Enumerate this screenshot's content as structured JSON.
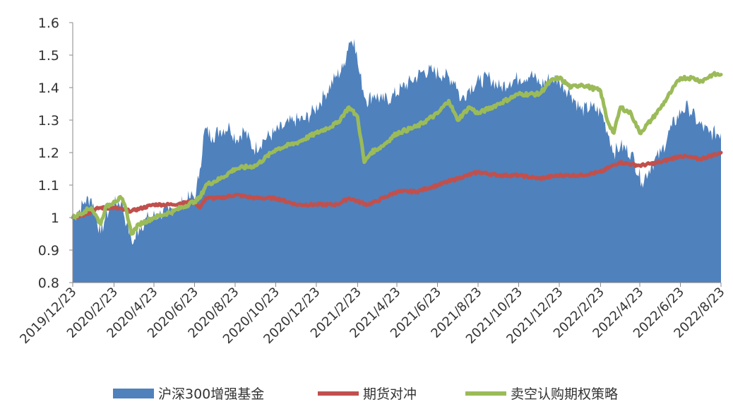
{
  "chart_data": {
    "type": "area",
    "title": "",
    "xlabel": "",
    "ylabel": "",
    "ylim": [
      0.8,
      1.6
    ],
    "yticks": [
      "1.6",
      "1.5",
      "1.4",
      "1.3",
      "1.2",
      "1.1",
      "1",
      "0.9",
      "0.8"
    ],
    "xticks": [
      "2019/12/23",
      "2020/2/23",
      "2020/4/23",
      "2020/6/23",
      "2020/8/23",
      "2020/10/23",
      "2020/12/23",
      "2021/2/23",
      "2021/4/23",
      "2021/6/23",
      "2021/8/23",
      "2021/10/23",
      "2021/12/23",
      "2022/2/23",
      "2022/4/23",
      "2022/6/23",
      "2022/8/23"
    ],
    "grid": false,
    "legend_position": "bottom",
    "series": [
      {
        "name": "沪深300增强基金",
        "type": "area",
        "color": "#4f81bd",
        "points": [
          [
            "2019/12/23",
            1.0
          ],
          [
            "2020/1/1",
            1.02
          ],
          [
            "2020/1/10",
            1.05
          ],
          [
            "2020/1/20",
            1.06
          ],
          [
            "2020/2/3",
            0.95
          ],
          [
            "2020/2/10",
            1.0
          ],
          [
            "2020/2/20",
            1.04
          ],
          [
            "2020/3/5",
            1.05
          ],
          [
            "2020/3/13",
            0.98
          ],
          [
            "2020/3/23",
            0.92
          ],
          [
            "2020/4/1",
            0.97
          ],
          [
            "2020/4/15",
            1.0
          ],
          [
            "2020/5/1",
            1.01
          ],
          [
            "2020/5/15",
            1.02
          ],
          [
            "2020/6/1",
            1.04
          ],
          [
            "2020/6/15",
            1.06
          ],
          [
            "2020/6/25",
            1.07
          ],
          [
            "2020/7/1",
            1.15
          ],
          [
            "2020/7/8",
            1.27
          ],
          [
            "2020/7/20",
            1.25
          ],
          [
            "2020/8/1",
            1.27
          ],
          [
            "2020/8/15",
            1.28
          ],
          [
            "2020/8/25",
            1.24
          ],
          [
            "2020/9/5",
            1.27
          ],
          [
            "2020/9/20",
            1.21
          ],
          [
            "2020/10/5",
            1.24
          ],
          [
            "2020/10/20",
            1.26
          ],
          [
            "2020/11/5",
            1.28
          ],
          [
            "2020/11/20",
            1.3
          ],
          [
            "2020/12/5",
            1.3
          ],
          [
            "2020/12/20",
            1.33
          ],
          [
            "2021/1/5",
            1.38
          ],
          [
            "2021/1/20",
            1.43
          ],
          [
            "2021/2/1",
            1.46
          ],
          [
            "2021/2/10",
            1.54
          ],
          [
            "2021/2/18",
            1.55
          ],
          [
            "2021/2/25",
            1.45
          ],
          [
            "2021/3/8",
            1.36
          ],
          [
            "2021/3/20",
            1.38
          ],
          [
            "2021/4/1",
            1.36
          ],
          [
            "2021/4/15",
            1.37
          ],
          [
            "2021/5/1",
            1.4
          ],
          [
            "2021/5/15",
            1.42
          ],
          [
            "2021/6/1",
            1.45
          ],
          [
            "2021/6/15",
            1.45
          ],
          [
            "2021/7/1",
            1.44
          ],
          [
            "2021/7/20",
            1.42
          ],
          [
            "2021/7/28",
            1.36
          ],
          [
            "2021/8/10",
            1.4
          ],
          [
            "2021/8/25",
            1.42
          ],
          [
            "2021/9/10",
            1.43
          ],
          [
            "2021/9/25",
            1.4
          ],
          [
            "2021/10/10",
            1.42
          ],
          [
            "2021/10/25",
            1.43
          ],
          [
            "2021/11/10",
            1.44
          ],
          [
            "2021/11/25",
            1.41
          ],
          [
            "2021/12/10",
            1.43
          ],
          [
            "2021/12/23",
            1.42
          ],
          [
            "2022/1/10",
            1.38
          ],
          [
            "2022/1/25",
            1.33
          ],
          [
            "2022/2/10",
            1.34
          ],
          [
            "2022/2/25",
            1.32
          ],
          [
            "2022/3/8",
            1.25
          ],
          [
            "2022/3/15",
            1.2
          ],
          [
            "2022/3/25",
            1.22
          ],
          [
            "2022/4/10",
            1.2
          ],
          [
            "2022/4/26",
            1.11
          ],
          [
            "2022/5/10",
            1.16
          ],
          [
            "2022/5/25",
            1.2
          ],
          [
            "2022/6/10",
            1.28
          ],
          [
            "2022/6/25",
            1.33
          ],
          [
            "2022/7/5",
            1.34
          ],
          [
            "2022/7/20",
            1.29
          ],
          [
            "2022/8/5",
            1.26
          ],
          [
            "2022/8/23",
            1.26
          ]
        ]
      },
      {
        "name": "期货对冲",
        "type": "line",
        "color": "#c0504d",
        "points": [
          [
            "2019/12/23",
            1.0
          ],
          [
            "2020/1/10",
            1.01
          ],
          [
            "2020/2/1",
            1.03
          ],
          [
            "2020/2/23",
            1.03
          ],
          [
            "2020/3/20",
            1.02
          ],
          [
            "2020/4/23",
            1.04
          ],
          [
            "2020/5/20",
            1.04
          ],
          [
            "2020/6/23",
            1.05
          ],
          [
            "2020/7/1",
            1.03
          ],
          [
            "2020/7/10",
            1.06
          ],
          [
            "2020/8/1",
            1.06
          ],
          [
            "2020/8/23",
            1.07
          ],
          [
            "2020/9/23",
            1.06
          ],
          [
            "2020/10/23",
            1.06
          ],
          [
            "2020/11/23",
            1.04
          ],
          [
            "2020/12/23",
            1.04
          ],
          [
            "2021/1/23",
            1.04
          ],
          [
            "2021/2/10",
            1.06
          ],
          [
            "2021/2/23",
            1.05
          ],
          [
            "2021/3/10",
            1.04
          ],
          [
            "2021/3/23",
            1.05
          ],
          [
            "2021/4/23",
            1.08
          ],
          [
            "2021/5/23",
            1.08
          ],
          [
            "2021/6/23",
            1.1
          ],
          [
            "2021/7/23",
            1.12
          ],
          [
            "2021/8/23",
            1.14
          ],
          [
            "2021/9/23",
            1.13
          ],
          [
            "2021/10/23",
            1.13
          ],
          [
            "2021/11/23",
            1.12
          ],
          [
            "2021/12/23",
            1.13
          ],
          [
            "2022/1/23",
            1.13
          ],
          [
            "2022/2/23",
            1.14
          ],
          [
            "2022/3/23",
            1.17
          ],
          [
            "2022/4/23",
            1.16
          ],
          [
            "2022/5/23",
            1.17
          ],
          [
            "2022/6/23",
            1.19
          ],
          [
            "2022/7/23",
            1.18
          ],
          [
            "2022/8/23",
            1.2
          ]
        ]
      },
      {
        "name": "卖空认购期权策略",
        "type": "line",
        "color": "#9bbb59",
        "points": [
          [
            "2019/12/23",
            1.0
          ],
          [
            "2020/1/10",
            1.02
          ],
          [
            "2020/1/20",
            1.03
          ],
          [
            "2020/2/3",
            0.98
          ],
          [
            "2020/2/10",
            1.03
          ],
          [
            "2020/2/23",
            1.05
          ],
          [
            "2020/3/5",
            1.06
          ],
          [
            "2020/3/13",
            1.02
          ],
          [
            "2020/3/20",
            0.95
          ],
          [
            "2020/4/1",
            0.98
          ],
          [
            "2020/4/23",
            1.0
          ],
          [
            "2020/5/23",
            1.02
          ],
          [
            "2020/6/23",
            1.05
          ],
          [
            "2020/7/1",
            1.06
          ],
          [
            "2020/7/10",
            1.1
          ],
          [
            "2020/8/1",
            1.12
          ],
          [
            "2020/8/23",
            1.15
          ],
          [
            "2020/9/23",
            1.16
          ],
          [
            "2020/10/23",
            1.21
          ],
          [
            "2020/11/23",
            1.23
          ],
          [
            "2020/12/23",
            1.26
          ],
          [
            "2021/1/23",
            1.29
          ],
          [
            "2021/2/10",
            1.34
          ],
          [
            "2021/2/23",
            1.31
          ],
          [
            "2021/3/5",
            1.17
          ],
          [
            "2021/3/15",
            1.2
          ],
          [
            "2021/4/1",
            1.22
          ],
          [
            "2021/4/23",
            1.26
          ],
          [
            "2021/5/23",
            1.28
          ],
          [
            "2021/6/23",
            1.32
          ],
          [
            "2021/7/10",
            1.36
          ],
          [
            "2021/7/23",
            1.3
          ],
          [
            "2021/8/10",
            1.34
          ],
          [
            "2021/8/23",
            1.32
          ],
          [
            "2021/9/23",
            1.35
          ],
          [
            "2021/10/23",
            1.38
          ],
          [
            "2021/11/23",
            1.38
          ],
          [
            "2021/12/10",
            1.42
          ],
          [
            "2021/12/23",
            1.43
          ],
          [
            "2022/1/10",
            1.4
          ],
          [
            "2022/1/25",
            1.41
          ],
          [
            "2022/2/23",
            1.39
          ],
          [
            "2022/3/5",
            1.3
          ],
          [
            "2022/3/15",
            1.26
          ],
          [
            "2022/3/25",
            1.34
          ],
          [
            "2022/4/10",
            1.32
          ],
          [
            "2022/4/23",
            1.26
          ],
          [
            "2022/5/10",
            1.3
          ],
          [
            "2022/5/25",
            1.34
          ],
          [
            "2022/6/10",
            1.39
          ],
          [
            "2022/6/23",
            1.43
          ],
          [
            "2022/7/10",
            1.43
          ],
          [
            "2022/7/25",
            1.42
          ],
          [
            "2022/8/10",
            1.44
          ],
          [
            "2022/8/23",
            1.44
          ]
        ]
      }
    ]
  }
}
